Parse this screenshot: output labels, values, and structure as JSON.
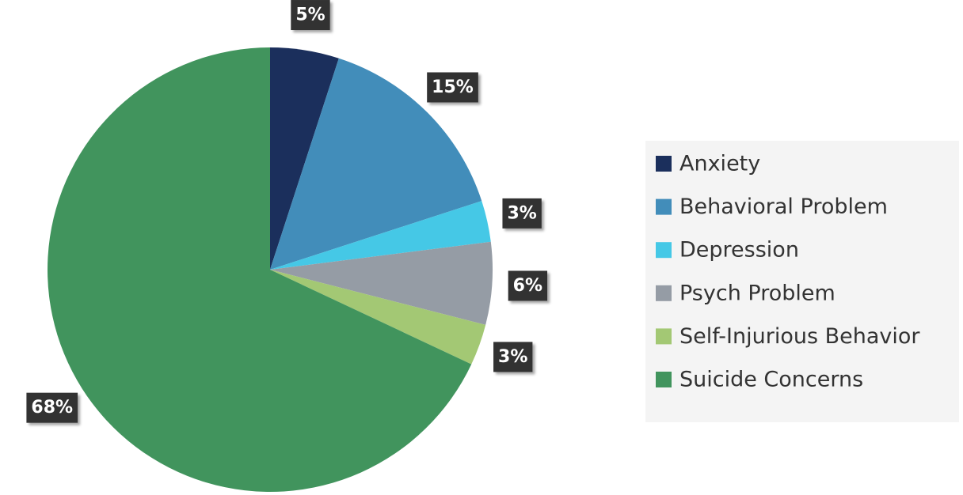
{
  "chart_data": {
    "type": "pie",
    "categories": [
      "Anxiety",
      "Behavioral Problem",
      "Depression",
      "Psych Problem",
      "Self-Injurious Behavior",
      "Suicide Concerns"
    ],
    "values": [
      5,
      15,
      3,
      6,
      3,
      68
    ],
    "value_labels": [
      "5%",
      "15%",
      "3%",
      "6%",
      "3%",
      "68%"
    ],
    "colors": [
      "#1b2f5c",
      "#428dba",
      "#45c8e6",
      "#959ca5",
      "#a3c874",
      "#41945d"
    ],
    "legend": "right"
  }
}
